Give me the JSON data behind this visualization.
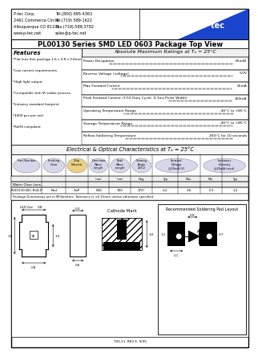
{
  "title": "PL00130 Series SMD LED 0603 Package Top View",
  "company_lines_left": [
    "P-tec Corp.",
    "2461 Commerce Circle",
    "Albuquerque CO 81101",
    "www.p-tec.net"
  ],
  "company_lines_right": [
    "Tel.(800) 695-4363",
    "Tel.(719) 589-1622",
    "Fax:(719)-589-3782",
    "sales@p-tec.net"
  ],
  "features_title": "Features",
  "features": [
    "*Flat lens thin package 1.6 x 0.8 x 0.8mm",
    "*Low current requirements",
    "*High light output",
    "*Compatible with IR solder process",
    "*Industry standard footprint",
    "*4000 pcs per reel",
    "*RoHS compliant"
  ],
  "abs_max_title": "Absolute Maximum Ratings at Tₐ = 25°C",
  "abs_max_rows": [
    [
      "Power Dissipation",
      "65mW"
    ],
    [
      "Reverse Voltage (voltage)",
      "5.0V"
    ],
    [
      "Max Forward Current",
      "25mA"
    ],
    [
      "Peak Forward Current (1/10 Duty Cycle, 0.1ms Pulse Width)",
      "100mA"
    ],
    [
      "Operating Temperature Range",
      "-40°C to +85°C"
    ],
    [
      "Storage Temperature Range",
      "-40°C to +85°C"
    ],
    [
      "Reflow Soldering Temperature",
      "260°C for 10 seconds"
    ]
  ],
  "elec_opt_title": "Electrical & Optical Characteristics at Tₐ = 25°C",
  "table_col_headers": [
    "Part Number",
    "Emitting\nColor",
    "Chip\nMaterial",
    "Dominant\nWave\nLength",
    "Peak\nWave\nLength",
    "Viewing\nAngle\n2θ1/2",
    "Forward\nVoltage\n@20mA (V)",
    "",
    "Luminous\nIntensity\n@20mA (mcd)",
    ""
  ],
  "table_subheaders": [
    "",
    "",
    "",
    "(nm)",
    "(nm)",
    "Deg.",
    "Typ.",
    "Max.",
    "Min.",
    "Typ."
  ],
  "table_row_label": "Water Clear Lens",
  "table_data_row": [
    "PL00130-WC-R24-P",
    "Red",
    "GaP",
    "636",
    "700",
    "170°",
    "2.2",
    "2.6",
    "0.1",
    "1.2"
  ],
  "pkg_note": "Package Dimensions are in Millimeters. Tolerance is ±0.15mm unless otherwise specified",
  "cathode_mark": "Cathode Mark",
  "rec_soldering": "Recommended Soldering Pad Layout",
  "doc_num": "T-05-11  REV E  9/05",
  "bg_color": "#ffffff",
  "ptec_blue": "#1a44cc",
  "col_circle_colors": [
    "#d0d0e8",
    "#d0d0e8",
    "#e8c870",
    "#d0d0e8",
    "#d0d0e8",
    "#d0d0e8",
    "#d0d0e8",
    "#d0d0e8"
  ],
  "dim_labels": {
    "pkg_width": "0.8",
    "pkg_height": "1.6",
    "pkg_inner": "1.5",
    "pkg_bottom": "0.8",
    "side_top": "0.3",
    "side_bottom": "0.6",
    "cath_height": "1.0",
    "pad_top": "0.9",
    "pad_left": "1.1",
    "pad_right": "0.7",
    "pad_bottom": "1.1"
  }
}
